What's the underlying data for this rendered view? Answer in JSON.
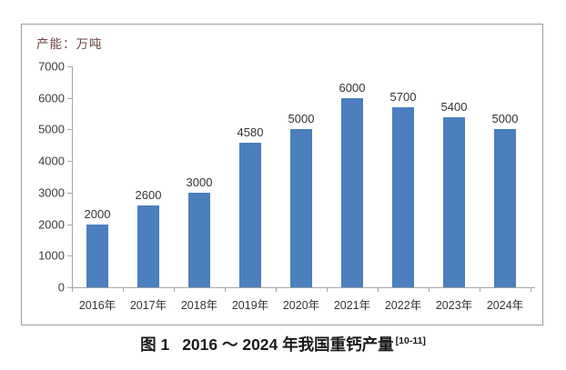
{
  "chart_data": {
    "type": "bar",
    "unit_label": "产能：万吨",
    "categories": [
      "2016年",
      "2017年",
      "2018年",
      "2019年",
      "2020年",
      "2021年",
      "2022年",
      "2023年",
      "2024年"
    ],
    "values": [
      2000,
      2600,
      3000,
      4580,
      5000,
      6000,
      5700,
      5400,
      5000
    ],
    "ylim": [
      0,
      7000
    ],
    "ytick_step": 1000,
    "grid": "off",
    "legend": "none",
    "bar_color": "#4b7fbe",
    "axis_color": "#a6a6a6",
    "label_color": "#343434",
    "unit_label_color": "#6b4340"
  },
  "caption": {
    "prefix": "图 1",
    "title": "2016 ～ 2024 年我国重钙产量",
    "citation": "[10-11]"
  }
}
